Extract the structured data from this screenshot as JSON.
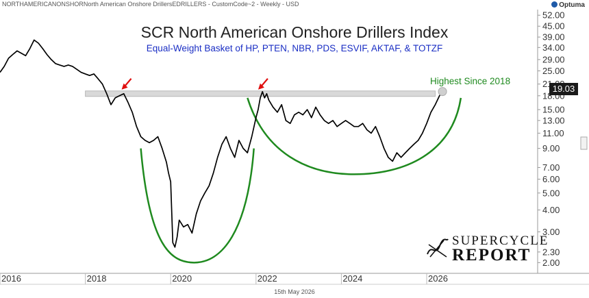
{
  "header": {
    "symbol_line": "NORTHAMERICANONSHORNorth American Onshore DrillersEDRILLERS - CustomCode~2 - Weekly - USD",
    "logo": "Optuma"
  },
  "date_footer": "15th May 2026",
  "brand": {
    "line1": "SUPERCYCLE",
    "line2": "REPORT"
  },
  "chart_data": {
    "type": "line",
    "title": "SCR North American Onshore Drillers Index",
    "subtitle": "Equal-Weight Basket of HP, PTEN, NBR, PDS, ESVIF, AKTAF, & TOTZF",
    "y_scale": "log",
    "ylim": [
      1.8,
      56
    ],
    "xlim": [
      2016.0,
      2028.6
    ],
    "y_ticks": [
      "52.00",
      "45.00",
      "39.00",
      "34.00",
      "29.00",
      "25.00",
      "21.00",
      "18.00",
      "15.00",
      "13.00",
      "11.00",
      "9.00",
      "7.00",
      "6.00",
      "5.00",
      "4.00",
      "3.00",
      "2.30",
      "2.00"
    ],
    "x_ticks": [
      "2016",
      "2018",
      "2020",
      "2022",
      "2024",
      "2026"
    ],
    "last_value": "19.03",
    "annotation": "Highest Since 2018",
    "resistance_level": 18.5,
    "grid": false,
    "colors": {
      "line": "#000000",
      "arc": "#1f8a1f",
      "arrow": "#e01010",
      "band": "#d9d9d9"
    },
    "series": [
      {
        "x": [
          2016.0,
          2016.1,
          2016.2,
          2016.3,
          2016.4,
          2016.5,
          2016.6,
          2016.7,
          2016.8,
          2016.9,
          2017.0,
          2017.1,
          2017.2,
          2017.3,
          2017.4,
          2017.5,
          2017.6,
          2017.7,
          2017.8,
          2017.9,
          2018.0,
          2018.1,
          2018.2,
          2018.3,
          2018.4,
          2018.5,
          2018.6,
          2018.7,
          2018.8,
          2018.9,
          2019.0,
          2019.1,
          2019.2,
          2019.3,
          2019.4,
          2019.5,
          2019.6,
          2019.7,
          2019.8,
          2019.9,
          2019.95,
          2020.0,
          2020.05,
          2020.1,
          2020.15,
          2020.2,
          2020.3,
          2020.4,
          2020.5,
          2020.6,
          2020.7,
          2020.8,
          2020.9,
          2021.0,
          2021.1,
          2021.2,
          2021.3,
          2021.4,
          2021.5,
          2021.6,
          2021.7,
          2021.8,
          2021.9,
          2022.0,
          2022.05,
          2022.1,
          2022.15,
          2022.2,
          2022.25,
          2022.3,
          2022.4,
          2022.5,
          2022.6,
          2022.7,
          2022.8,
          2022.9,
          2023.0,
          2023.1,
          2023.2,
          2023.3,
          2023.4,
          2023.5,
          2023.6,
          2023.7,
          2023.8,
          2023.9,
          2024.0,
          2024.1,
          2024.2,
          2024.3,
          2024.4,
          2024.5,
          2024.6,
          2024.7,
          2024.8,
          2024.9,
          2025.0,
          2025.1,
          2025.2,
          2025.3,
          2025.4,
          2025.5,
          2025.6,
          2025.7,
          2025.8,
          2025.9,
          2026.0,
          2026.1,
          2026.2,
          2026.3,
          2026.37
        ],
        "y": [
          24.5,
          26.5,
          29.5,
          31.0,
          32.5,
          31.5,
          30.5,
          33.5,
          37.5,
          36.0,
          33.5,
          31.0,
          29.0,
          27.5,
          27.0,
          26.5,
          27.0,
          26.5,
          25.5,
          24.5,
          24.0,
          23.5,
          24.0,
          22.5,
          21.0,
          18.5,
          16.0,
          17.5,
          18.0,
          18.5,
          16.5,
          14.5,
          12.0,
          10.5,
          10.0,
          9.7,
          10.0,
          10.5,
          9.0,
          7.5,
          6.5,
          5.8,
          2.6,
          2.45,
          2.8,
          3.5,
          3.2,
          3.3,
          2.95,
          3.8,
          4.5,
          5.0,
          5.5,
          6.5,
          8.0,
          9.5,
          10.5,
          9.0,
          8.0,
          10.0,
          9.0,
          8.5,
          10.5,
          13.5,
          15.0,
          17.5,
          19.0,
          17.5,
          18.5,
          17.0,
          15.5,
          14.5,
          16.0,
          13.0,
          12.5,
          14.0,
          14.5,
          14.0,
          15.0,
          13.5,
          15.5,
          14.0,
          13.0,
          12.5,
          13.0,
          12.0,
          12.5,
          13.0,
          12.5,
          12.0,
          12.0,
          12.5,
          11.5,
          11.0,
          12.0,
          10.5,
          9.0,
          8.0,
          7.6,
          8.5,
          8.0,
          8.5,
          9.0,
          9.5,
          10.0,
          11.0,
          12.5,
          14.5,
          16.0,
          18.0,
          19.03
        ]
      }
    ]
  }
}
